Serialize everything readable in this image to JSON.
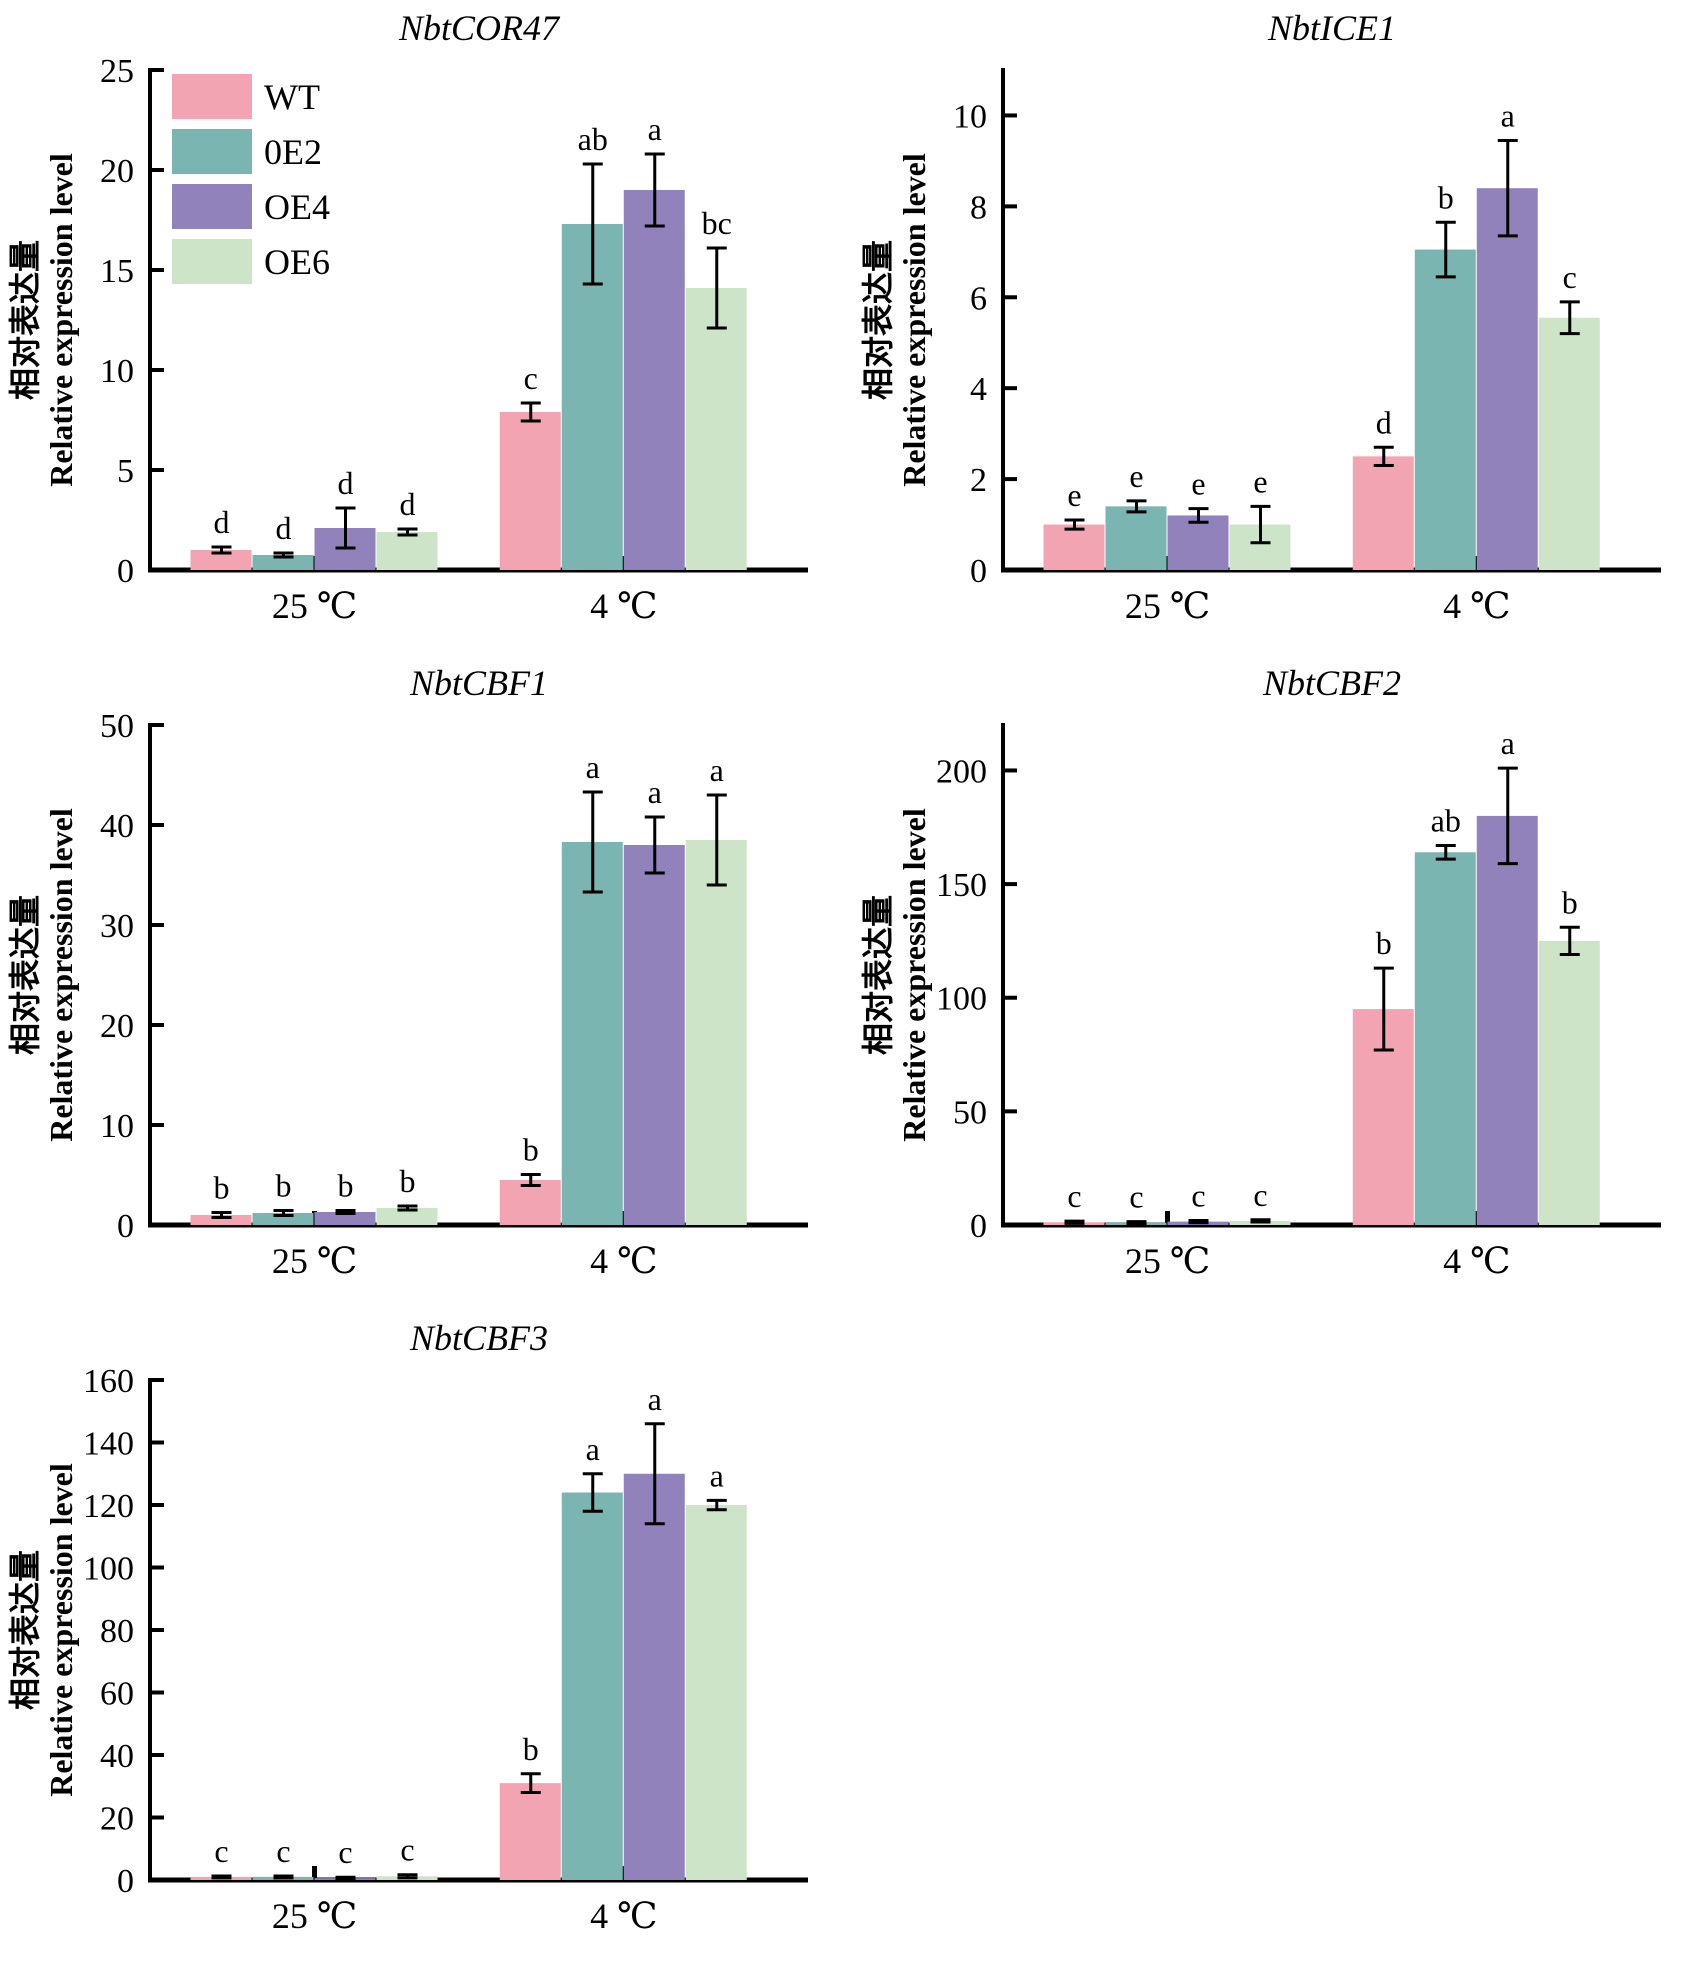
{
  "page": {
    "background": "#ffffff"
  },
  "axis": {
    "ylabel_line1": "相对表达量",
    "ylabel_line2": "Relative expression level",
    "categories": [
      "25 ℃",
      "4 ℃"
    ]
  },
  "legend": {
    "items": [
      {
        "label": "WT",
        "color": "#F3A4B3"
      },
      {
        "label": "0E2",
        "color": "#7AB5B1"
      },
      {
        "label": "OE4",
        "color": "#9282BC"
      },
      {
        "label": "OE6",
        "color": "#CDE4C8"
      }
    ]
  },
  "chart_data": [
    {
      "type": "bar",
      "title": "NbtCOR47",
      "xlabel": "",
      "ylabel": "相对表达量 Relative expression level",
      "categories": [
        "25 ℃",
        "4 ℃"
      ],
      "ylim": [
        0,
        25
      ],
      "yticks": [
        0,
        5,
        10,
        15,
        20,
        25
      ],
      "grid": false,
      "legend_position": "top-left-inside",
      "show_legend": true,
      "series": [
        {
          "name": "WT",
          "color": "#F3A4B3",
          "values": [
            1.0,
            7.9
          ],
          "errors": [
            0.15,
            0.45
          ],
          "letters": [
            "d",
            "c"
          ]
        },
        {
          "name": "0E2",
          "color": "#7AB5B1",
          "values": [
            0.75,
            17.3
          ],
          "errors": [
            0.1,
            3.0
          ],
          "letters": [
            "d",
            "ab"
          ]
        },
        {
          "name": "OE4",
          "color": "#9282BC",
          "values": [
            2.1,
            19.0
          ],
          "errors": [
            1.0,
            1.8
          ],
          "letters": [
            "d",
            "a"
          ]
        },
        {
          "name": "OE6",
          "color": "#CDE4C8",
          "values": [
            1.9,
            14.1
          ],
          "errors": [
            0.15,
            2.0
          ],
          "letters": [
            "d",
            "bc"
          ]
        }
      ]
    },
    {
      "type": "bar",
      "title": "NbtICE1",
      "xlabel": "",
      "ylabel": "相对表达量 Relative expression level",
      "categories": [
        "25 ℃",
        "4 ℃"
      ],
      "ylim": [
        0,
        11
      ],
      "yticks": [
        0,
        2,
        4,
        6,
        8,
        10
      ],
      "grid": false,
      "show_legend": false,
      "series": [
        {
          "name": "WT",
          "color": "#F3A4B3",
          "values": [
            1.0,
            2.5
          ],
          "errors": [
            0.1,
            0.2
          ],
          "letters": [
            "e",
            "d"
          ]
        },
        {
          "name": "0E2",
          "color": "#7AB5B1",
          "values": [
            1.4,
            7.05
          ],
          "errors": [
            0.12,
            0.6
          ],
          "letters": [
            "e",
            "b"
          ]
        },
        {
          "name": "OE4",
          "color": "#9282BC",
          "values": [
            1.2,
            8.4
          ],
          "errors": [
            0.15,
            1.05
          ],
          "letters": [
            "e",
            "a"
          ]
        },
        {
          "name": "OE6",
          "color": "#CDE4C8",
          "values": [
            1.0,
            5.55
          ],
          "errors": [
            0.4,
            0.35
          ],
          "letters": [
            "e",
            "c"
          ]
        }
      ]
    },
    {
      "type": "bar",
      "title": "NbtCBF1",
      "xlabel": "",
      "ylabel": "相对表达量 Relative expression level",
      "categories": [
        "25 ℃",
        "4 ℃"
      ],
      "ylim": [
        0,
        50
      ],
      "yticks": [
        0,
        10,
        20,
        30,
        40,
        50
      ],
      "grid": false,
      "show_legend": false,
      "series": [
        {
          "name": "WT",
          "color": "#F3A4B3",
          "values": [
            1.0,
            4.5
          ],
          "errors": [
            0.25,
            0.55
          ],
          "letters": [
            "b",
            "b"
          ]
        },
        {
          "name": "0E2",
          "color": "#7AB5B1",
          "values": [
            1.2,
            38.3
          ],
          "errors": [
            0.25,
            5.0
          ],
          "letters": [
            "b",
            "a"
          ]
        },
        {
          "name": "OE4",
          "color": "#9282BC",
          "values": [
            1.3,
            38.0
          ],
          "errors": [
            0.15,
            2.8
          ],
          "letters": [
            "b",
            "a"
          ]
        },
        {
          "name": "OE6",
          "color": "#CDE4C8",
          "values": [
            1.7,
            38.5
          ],
          "errors": [
            0.2,
            4.5
          ],
          "letters": [
            "b",
            "a"
          ]
        }
      ]
    },
    {
      "type": "bar",
      "title": "NbtCBF2",
      "xlabel": "",
      "ylabel": "相对表达量 Relative expression level",
      "categories": [
        "25 ℃",
        "4 ℃"
      ],
      "ylim": [
        0,
        220
      ],
      "yticks": [
        0,
        50,
        100,
        150,
        200
      ],
      "grid": false,
      "show_legend": false,
      "series": [
        {
          "name": "WT",
          "color": "#F3A4B3",
          "values": [
            1.2,
            95
          ],
          "errors": [
            0.5,
            18
          ],
          "letters": [
            "c",
            "b"
          ]
        },
        {
          "name": "0E2",
          "color": "#7AB5B1",
          "values": [
            1.0,
            164
          ],
          "errors": [
            0.5,
            3
          ],
          "letters": [
            "c",
            "ab"
          ]
        },
        {
          "name": "OE4",
          "color": "#9282BC",
          "values": [
            1.5,
            180
          ],
          "errors": [
            0.5,
            21
          ],
          "letters": [
            "c",
            "a"
          ]
        },
        {
          "name": "OE6",
          "color": "#CDE4C8",
          "values": [
            1.8,
            125
          ],
          "errors": [
            0.5,
            6
          ],
          "letters": [
            "c",
            "b"
          ]
        }
      ]
    },
    {
      "type": "bar",
      "title": "NbtCBF3",
      "xlabel": "",
      "ylabel": "相对表达量 Relative expression level",
      "categories": [
        "25 ℃",
        "4 ℃"
      ],
      "ylim": [
        0,
        160
      ],
      "yticks": [
        0,
        20,
        40,
        60,
        80,
        100,
        120,
        140,
        160
      ],
      "grid": false,
      "show_legend": false,
      "series": [
        {
          "name": "WT",
          "color": "#F3A4B3",
          "values": [
            1.0,
            31
          ],
          "errors": [
            0.3,
            3
          ],
          "letters": [
            "c",
            "b"
          ]
        },
        {
          "name": "0E2",
          "color": "#7AB5B1",
          "values": [
            1.0,
            124
          ],
          "errors": [
            0.3,
            6
          ],
          "letters": [
            "c",
            "a"
          ]
        },
        {
          "name": "OE4",
          "color": "#9282BC",
          "values": [
            0.6,
            130
          ],
          "errors": [
            0.3,
            16
          ],
          "letters": [
            "c",
            "a"
          ]
        },
        {
          "name": "OE6",
          "color": "#CDE4C8",
          "values": [
            1.2,
            120
          ],
          "errors": [
            0.5,
            1.5
          ],
          "letters": [
            "c",
            "a"
          ]
        }
      ]
    }
  ]
}
